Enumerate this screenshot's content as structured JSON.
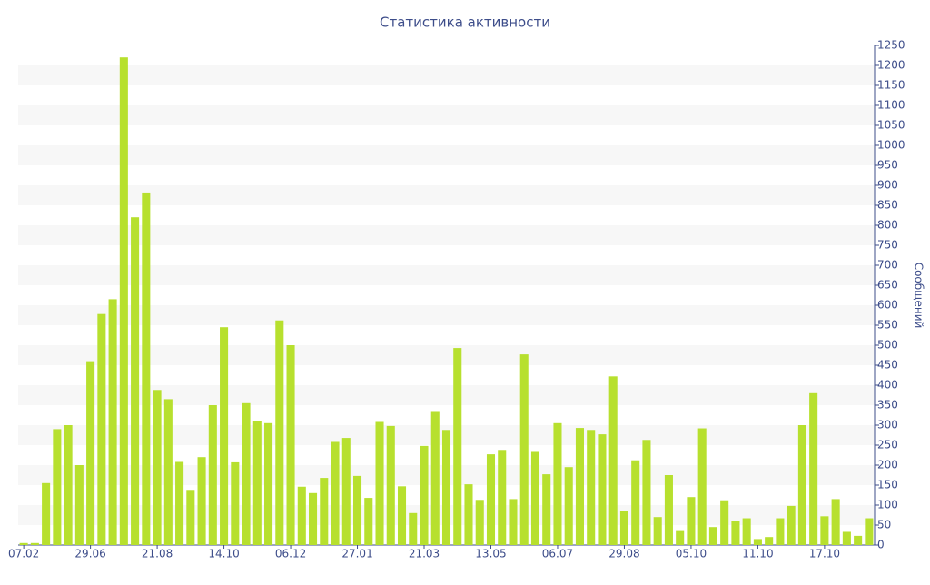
{
  "chart_data": {
    "type": "bar",
    "title": "Статистика активности",
    "y_label": "Сообщений",
    "categories": [
      "07.02",
      null,
      null,
      null,
      null,
      null,
      "29.06",
      null,
      null,
      null,
      null,
      null,
      "21.08",
      null,
      null,
      null,
      null,
      null,
      "14.10",
      null,
      null,
      null,
      null,
      null,
      "06.12",
      null,
      null,
      null,
      null,
      null,
      "27.01",
      null,
      null,
      null,
      null,
      null,
      "21.03",
      null,
      null,
      null,
      null,
      null,
      "13.05",
      null,
      null,
      null,
      null,
      null,
      "06.07",
      null,
      null,
      null,
      null,
      null,
      "29.08",
      null,
      null,
      null,
      null,
      null,
      "05.10",
      null,
      null,
      null,
      null,
      null,
      "11.10",
      null,
      null,
      null,
      null,
      null,
      "17.10",
      null,
      null,
      null,
      null
    ],
    "values": [
      5,
      5,
      155,
      290,
      300,
      200,
      460,
      578,
      615,
      1220,
      820,
      882,
      388,
      365,
      208,
      138,
      220,
      350,
      545,
      207,
      355,
      310,
      305,
      562,
      500,
      146,
      130,
      168,
      258,
      268,
      173,
      118,
      308,
      298,
      147,
      80,
      248,
      333,
      288,
      493,
      152,
      113,
      227,
      238,
      115,
      477,
      233,
      177,
      305,
      195,
      293,
      288,
      277,
      422,
      85,
      212,
      263,
      70,
      175,
      35,
      120,
      292,
      45,
      112,
      60,
      67,
      15,
      20,
      67,
      98,
      300,
      380,
      72,
      115,
      33,
      23,
      67
    ],
    "color": "#b7e02e",
    "axis_color": "#3d4d8a",
    "ylim": [
      0,
      1250
    ],
    "yticks": [
      0,
      50,
      100,
      150,
      200,
      250,
      300,
      350,
      400,
      450,
      500,
      550,
      600,
      650,
      700,
      750,
      800,
      850,
      900,
      950,
      1000,
      1050,
      1100,
      1150,
      1200,
      1250
    ],
    "grid": "bands",
    "y_axis_side": "right"
  }
}
